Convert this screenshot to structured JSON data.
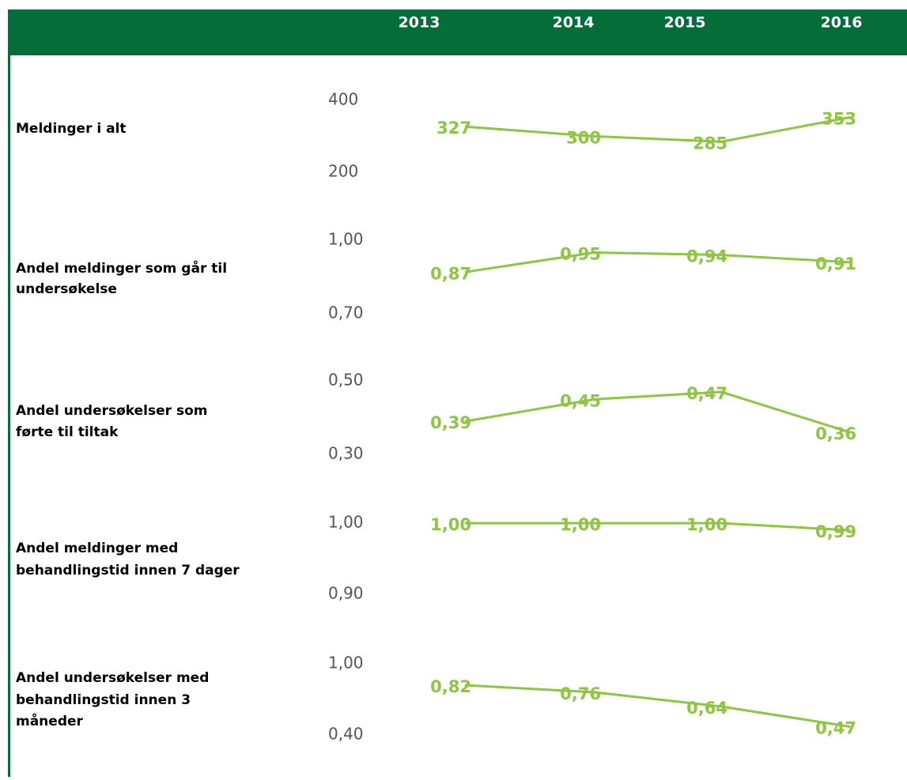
{
  "chart_data": {
    "type": "line",
    "color": "#8dc63f",
    "categories": [
      "2013",
      "2014",
      "2015",
      "2016"
    ],
    "panels": [
      {
        "title": [
          "Meldinger i alt"
        ],
        "values": [
          327,
          300,
          285,
          353
        ],
        "ylim": [
          200,
          400
        ],
        "yticks": [
          400,
          200
        ]
      },
      {
        "title": [
          "Andel meldinger som går til",
          "undersøkelse"
        ],
        "values": [
          0.87,
          0.95,
          0.94,
          0.91
        ],
        "value_labels": [
          "0,87",
          "0,95",
          "0,94",
          "0,91"
        ],
        "ylim": [
          0.7,
          1
        ],
        "yticks": [
          {
            "value": 1,
            "label": "1,00"
          },
          {
            "value": 0.7,
            "label": "0,70"
          }
        ]
      },
      {
        "title": [
          "Andel undersøkelser som",
          "førte til tiltak"
        ],
        "values": [
          0.39,
          0.45,
          0.47,
          0.36
        ],
        "value_labels": [
          "0,39",
          "0,45",
          "0,47",
          "0,36"
        ],
        "ylim": [
          0.3,
          0.5
        ],
        "yticks": [
          {
            "value": 0.5,
            "label": "0,50"
          },
          {
            "value": 0.3,
            "label": "0,30"
          }
        ]
      },
      {
        "title": [
          "Andel meldinger med",
          "behandlingstid innen 7 dager"
        ],
        "values": [
          1,
          1,
          1,
          0.99
        ],
        "value_labels": [
          "1,00",
          "1,00",
          "1,00",
          "0,99"
        ],
        "ylim": [
          0.9,
          1
        ],
        "yticks": [
          {
            "value": 1,
            "label": "1,00"
          },
          {
            "value": 0.9,
            "label": "0,90"
          }
        ]
      },
      {
        "title": [
          "Andel undersøkelser med",
          "behandlingstid innen 3",
          "måneder"
        ],
        "values": [
          0.82,
          0.76,
          0.64,
          0.47
        ],
        "value_labels": [
          "0,82",
          "0,76",
          "0,64",
          "0,47"
        ],
        "ylim": [
          0.4,
          1
        ],
        "yticks": [
          {
            "value": 1,
            "label": "1,00"
          },
          {
            "value": 0.4,
            "label": "0,40"
          }
        ]
      }
    ]
  }
}
